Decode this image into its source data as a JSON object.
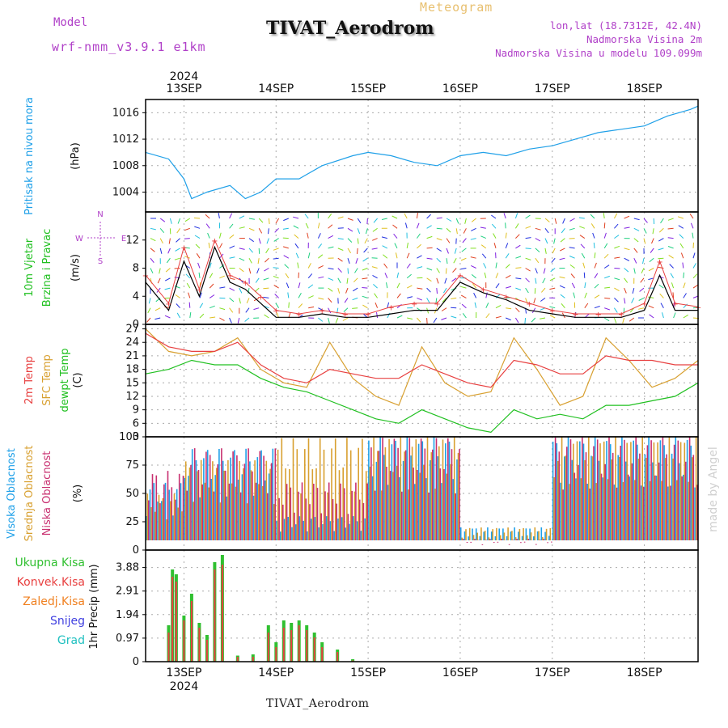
{
  "header": {
    "model_label": "Model",
    "model_name": "wrf-nmm_v3.9.1 e1km",
    "title": "TIVAT_Aerodrom",
    "subtitle": "Meteogram",
    "coords": "lon,lat (18.7312E, 42.4N)",
    "elev_station": "Nadmorska Visina 2m",
    "elev_model": "Nadmorska Visina u modelu 109.099m"
  },
  "footer": {
    "station": "TIVAT_Aerodrom",
    "watermark": "made by Angel"
  },
  "time_axis": {
    "year_top": "2024",
    "year_bottom": "2024",
    "days": [
      "13SEP",
      "14SEP",
      "15SEP",
      "16SEP",
      "17SEP",
      "18SEP"
    ],
    "start": "2024-09-12T14:00",
    "end": "2024-09-18T14:00",
    "day_ticks": [
      "2024-09-13T00:00",
      "2024-09-14T00:00",
      "2024-09-15T00:00",
      "2024-09-16T00:00",
      "2024-09-17T00:00",
      "2024-09-18T00:00"
    ]
  },
  "panels": {
    "pressure": {
      "label1": "Pritisak na nivou mora",
      "unit": "(hPa)",
      "ticks": [
        "1004",
        "1008",
        "1012",
        "1016"
      ],
      "line_color": "#1fa0e8"
    },
    "wind": {
      "label1": "10m Vjetar",
      "label2": "Brzina i Pravac",
      "unit": "(m/s)",
      "ticks": [
        "0",
        "4",
        "8",
        "12"
      ],
      "compass": {
        "n": "N",
        "e": "E",
        "w": "W",
        "s": "S"
      }
    },
    "temp": {
      "label1": "2m Temp",
      "label2": "SFC Temp",
      "label3": "dewpt Temp",
      "unit": "(C)",
      "ticks": [
        "3",
        "6",
        "9",
        "12",
        "15",
        "18",
        "21",
        "24",
        "27"
      ]
    },
    "cloud": {
      "label1": "Visoka Oblacnost",
      "label2": "Srednja Oblacnost",
      "label3": "Niska Oblacnost",
      "unit": "(%)",
      "ticks": [
        "0",
        "25",
        "50",
        "75",
        "100"
      ]
    },
    "precip": {
      "legend": [
        "Ukupna Kisa",
        "Konvek.Kisa",
        "Zaledj.Kisa",
        "Snijeg",
        "Grad"
      ],
      "ylabel": "1hr Precip (mm)",
      "ticks": [
        "0",
        "0.97",
        "1.94",
        "2.91",
        "3.88"
      ]
    }
  },
  "colors": {
    "pressure": "#1fa0e8",
    "t2m": "#e84040",
    "tsfc": "#d8a030",
    "dewpt": "#20c020",
    "high_cloud": "#1fa0e8",
    "mid_cloud": "#d8a030",
    "low_cloud": "#c83070",
    "total_rain": "#30c030",
    "conv_rain": "#e84040",
    "frz_rain": "#f08020",
    "snow": "#4040e0",
    "hail": "#20c0c0",
    "purple": "#b040c8"
  },
  "chart_data": [
    {
      "type": "line",
      "title": "",
      "ylabel": "Pritisak na nivou mora (hPa)",
      "ylim": [
        1001,
        1018
      ],
      "x": [
        "2024-09-12T14:00",
        "2024-09-12T20:00",
        "2024-09-13T00:00",
        "2024-09-13T02:00",
        "2024-09-13T06:00",
        "2024-09-13T12:00",
        "2024-09-13T16:00",
        "2024-09-13T20:00",
        "2024-09-14T00:00",
        "2024-09-14T06:00",
        "2024-09-14T12:00",
        "2024-09-14T20:00",
        "2024-09-15T00:00",
        "2024-09-15T06:00",
        "2024-09-15T12:00",
        "2024-09-15T18:00",
        "2024-09-16T00:00",
        "2024-09-16T06:00",
        "2024-09-16T12:00",
        "2024-09-16T18:00",
        "2024-09-17T00:00",
        "2024-09-17T06:00",
        "2024-09-17T12:00",
        "2024-09-17T18:00",
        "2024-09-18T00:00",
        "2024-09-18T06:00",
        "2024-09-18T12:00",
        "2024-09-18T14:00"
      ],
      "series": [
        {
          "name": "Pritisak na nivou mora",
          "values": [
            1010,
            1009,
            1006,
            1003,
            1004,
            1005,
            1003,
            1004,
            1006,
            1006,
            1008,
            1009.5,
            1010,
            1009.5,
            1008.5,
            1008,
            1009.5,
            1010,
            1009.5,
            1010.5,
            1011,
            1012,
            1013,
            1013.5,
            1014,
            1015.5,
            1016.5,
            1017
          ]
        }
      ]
    },
    {
      "type": "line",
      "title": "",
      "ylabel": "Brzina i Pravac (m/s)",
      "ylim": [
        0,
        16
      ],
      "x": [
        "2024-09-12T14:00",
        "2024-09-12T20:00",
        "2024-09-13T00:00",
        "2024-09-13T04:00",
        "2024-09-13T08:00",
        "2024-09-13T12:00",
        "2024-09-13T16:00",
        "2024-09-13T20:00",
        "2024-09-14T00:00",
        "2024-09-14T06:00",
        "2024-09-14T12:00",
        "2024-09-14T18:00",
        "2024-09-15T00:00",
        "2024-09-15T06:00",
        "2024-09-15T12:00",
        "2024-09-15T18:00",
        "2024-09-16T00:00",
        "2024-09-16T06:00",
        "2024-09-16T12:00",
        "2024-09-16T18:00",
        "2024-09-17T00:00",
        "2024-09-17T06:00",
        "2024-09-17T12:00",
        "2024-09-17T18:00",
        "2024-09-18T00:00",
        "2024-09-18T04:00",
        "2024-09-18T08:00",
        "2024-09-18T14:00"
      ],
      "series": [
        {
          "name": "10m Vjetar",
          "values": [
            6,
            2,
            9,
            4,
            11,
            6,
            5,
            3,
            1,
            1,
            1.5,
            1,
            1,
            1.5,
            2,
            2,
            6,
            4.5,
            3.5,
            2,
            1.5,
            1,
            1,
            1,
            2,
            7,
            2,
            2
          ]
        },
        {
          "name": "",
          "values": [
            7,
            3,
            11,
            5,
            12,
            7,
            6,
            4,
            2,
            1.5,
            2,
            1.5,
            1.5,
            2.5,
            3,
            3,
            7,
            5,
            4,
            3,
            2,
            1.5,
            1.5,
            1.5,
            3,
            9,
            3,
            2.5
          ]
        }
      ]
    },
    {
      "type": "line",
      "title": "",
      "ylabel": "(C)",
      "ylim": [
        3,
        28
      ],
      "x": [
        "2024-09-12T14:00",
        "2024-09-12T20:00",
        "2024-09-13T02:00",
        "2024-09-13T08:00",
        "2024-09-13T14:00",
        "2024-09-13T20:00",
        "2024-09-14T02:00",
        "2024-09-14T08:00",
        "2024-09-14T14:00",
        "2024-09-14T20:00",
        "2024-09-15T02:00",
        "2024-09-15T08:00",
        "2024-09-15T14:00",
        "2024-09-15T20:00",
        "2024-09-16T02:00",
        "2024-09-16T08:00",
        "2024-09-16T14:00",
        "2024-09-16T20:00",
        "2024-09-17T02:00",
        "2024-09-17T08:00",
        "2024-09-17T14:00",
        "2024-09-17T20:00",
        "2024-09-18T02:00",
        "2024-09-18T08:00",
        "2024-09-18T14:00"
      ],
      "series": [
        {
          "name": "2m Temp",
          "values": [
            26,
            23,
            22,
            22,
            24,
            19,
            16,
            15,
            18,
            17,
            16,
            16,
            19,
            17,
            15,
            14,
            20,
            19,
            17,
            17,
            21,
            20,
            20,
            19,
            19
          ]
        },
        {
          "name": "SFC Temp",
          "values": [
            27,
            22,
            21,
            22,
            25,
            18,
            15,
            14,
            24,
            16,
            12,
            10,
            23,
            15,
            12,
            13,
            25,
            18,
            10,
            12,
            25,
            20,
            14,
            16,
            20
          ]
        },
        {
          "name": "dewpt Temp",
          "values": [
            17,
            18,
            20,
            19,
            19,
            16,
            14,
            13,
            11,
            9,
            7,
            6,
            9,
            7,
            5,
            4,
            9,
            7,
            8,
            7,
            10,
            10,
            11,
            12,
            15
          ]
        }
      ]
    },
    {
      "type": "bar",
      "title": "",
      "ylabel": "(%)",
      "ylim": [
        0,
        100
      ],
      "categories": [
        "2024-09-12",
        "2024-09-13",
        "2024-09-14",
        "2024-09-15",
        "2024-09-16",
        "2024-09-17",
        "2024-09-18"
      ],
      "series": [
        {
          "name": "Visoka Oblacnost",
          "values": [
            60,
            90,
            30,
            100,
            20,
            100,
            100
          ]
        },
        {
          "name": "Srednja Oblacnost",
          "values": [
            50,
            80,
            100,
            100,
            20,
            100,
            100
          ]
        },
        {
          "name": "Niska Oblacnost",
          "values": [
            70,
            90,
            60,
            100,
            10,
            100,
            100
          ]
        }
      ]
    },
    {
      "type": "bar",
      "title": "",
      "ylabel": "1hr Precip (mm)",
      "ylim": [
        0,
        4.6
      ],
      "categories": [
        "2024-09-12T20",
        "2024-09-12T21",
        "2024-09-12T22",
        "2024-09-13T00",
        "2024-09-13T02",
        "2024-09-13T04",
        "2024-09-13T06",
        "2024-09-13T08",
        "2024-09-13T10",
        "2024-09-13T14",
        "2024-09-13T18",
        "2024-09-13T22",
        "2024-09-14T00",
        "2024-09-14T02",
        "2024-09-14T04",
        "2024-09-14T06",
        "2024-09-14T08",
        "2024-09-14T10",
        "2024-09-14T12",
        "2024-09-14T16",
        "2024-09-14T20"
      ],
      "series": [
        {
          "name": "Ukupna Kisa",
          "values": [
            1.5,
            3.8,
            3.6,
            1.9,
            2.8,
            1.6,
            1.1,
            4.1,
            4.4,
            0.25,
            0.3,
            1.5,
            0.8,
            1.7,
            1.6,
            1.7,
            1.5,
            1.2,
            0.8,
            0.5,
            0.1
          ]
        },
        {
          "name": "Konvek.Kisa",
          "values": [
            1.2,
            3.5,
            3.3,
            1.7,
            2.5,
            1.4,
            0.9,
            3.8,
            4.0,
            0.2,
            0.2,
            1.2,
            0.6,
            1.4,
            1.3,
            1.5,
            1.3,
            1.0,
            0.6,
            0.4,
            0.05
          ]
        }
      ]
    }
  ]
}
